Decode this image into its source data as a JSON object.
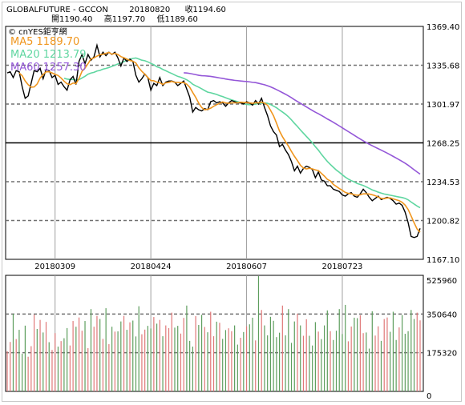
{
  "header": {
    "symbol": "GLOBALFUTURE - GCCON",
    "date": "20180820",
    "close_label": "收1194.60",
    "open_label": "開1190.40",
    "high_label": "高1197.70",
    "low_label": "低1189.60"
  },
  "watermark": "© cnYES鉅亨網",
  "legend": [
    {
      "label": "MA5 1189.70",
      "color": "#f0961e"
    },
    {
      "label": "MA20 1213.79",
      "color": "#5fd6a0"
    },
    {
      "label": "MA60 1257.30",
      "color": "#9457d8"
    }
  ],
  "colors": {
    "price": "#000000",
    "up_volume": "#e07878",
    "down_volume": "#5e9e5e",
    "grid_dashed": "#707070",
    "grid_vertical": "#a0a0a0"
  },
  "chart_data": [
    {
      "type": "line",
      "title": "",
      "y_ticks": [
        "1369.40",
        "1335.68",
        "1301.97",
        "1268.25",
        "1234.53",
        "1200.82",
        "1167.10"
      ],
      "x_ticks": [
        "20180309",
        "20180424",
        "20180607",
        "20180723"
      ],
      "ylim": [
        1167.1,
        1369.4
      ],
      "reference_line": 1268.25,
      "dashed_gridlines": [
        1335.68,
        1301.97,
        1234.53,
        1200.82
      ],
      "x_tick_index": [
        16,
        48,
        80,
        112
      ],
      "series": [
        {
          "name": "MA5 1189.70",
          "role": "ma5"
        },
        {
          "name": "MA20 1213.79",
          "role": "ma20"
        },
        {
          "name": "MA60 1257.30",
          "role": "ma60"
        }
      ],
      "close": [
        1329,
        1330,
        1325,
        1331,
        1330,
        1317,
        1307,
        1309,
        1320,
        1331,
        1330,
        1333,
        1324,
        1332,
        1331,
        1325,
        1327,
        1319,
        1321,
        1317,
        1314,
        1323,
        1326,
        1319,
        1339,
        1345,
        1337,
        1345,
        1340,
        1343,
        1353,
        1343,
        1347,
        1344,
        1347,
        1345,
        1347,
        1342,
        1335,
        1342,
        1339,
        1341,
        1339,
        1327,
        1321,
        1324,
        1328,
        1325,
        1314,
        1320,
        1318,
        1325,
        1318,
        1321,
        1322,
        1322,
        1321,
        1318,
        1320,
        1322,
        1315,
        1308,
        1295,
        1299,
        1297,
        1296,
        1298,
        1297,
        1304,
        1305,
        1303,
        1304,
        1303,
        1300,
        1303,
        1305,
        1304,
        1303,
        1303,
        1302,
        1304,
        1303,
        1301,
        1305,
        1302,
        1307,
        1299,
        1292,
        1283,
        1278,
        1275,
        1265,
        1267,
        1262,
        1258,
        1252,
        1244,
        1248,
        1242,
        1246,
        1248,
        1247,
        1245,
        1238,
        1243,
        1236,
        1235,
        1231,
        1231,
        1228,
        1227,
        1226,
        1223,
        1222,
        1224,
        1225,
        1222,
        1221,
        1224,
        1228,
        1225,
        1221,
        1218,
        1220,
        1222,
        1219,
        1220,
        1221,
        1220,
        1218,
        1215,
        1216,
        1214,
        1208,
        1199,
        1187,
        1186,
        1187,
        1194
      ]
    },
    {
      "type": "bar",
      "title": "",
      "y_ticks": [
        "525960",
        "350640",
        "175320",
        "0"
      ],
      "ylim": [
        0,
        525960
      ],
      "values": [
        182000,
        224000,
        352000,
        237000,
        279000,
        171000,
        298000,
        157000,
        205000,
        348000,
        283000,
        324000,
        267000,
        315000,
        223000,
        188000,
        264000,
        203000,
        228000,
        241000,
        287000,
        208000,
        319000,
        293000,
        335000,
        275000,
        319000,
        196000,
        373000,
        293000,
        342000,
        328000,
        238000,
        377000,
        214000,
        293000,
        271000,
        272000,
        317000,
        342000,
        279000,
        313000,
        321000,
        249000,
        386000,
        259000,
        280000,
        297000,
        285000,
        337000,
        307000,
        324000,
        250000,
        299000,
        287000,
        357000,
        289000,
        297000,
        262000,
        333000,
        389000,
        229000,
        203000,
        341000,
        301000,
        347000,
        292000,
        268000,
        361000,
        250000,
        316000,
        311000,
        238000,
        278000,
        286000,
        273000,
        299000,
        212000,
        243000,
        269000,
        295000,
        304000,
        334000,
        231000,
        530000,
        369000,
        299000,
        254000,
        338000,
        320000,
        246000,
        266000,
        389000,
        254000,
        373000,
        220000,
        317000,
        352000,
        299000,
        252000,
        327000,
        252000,
        208000,
        314000,
        271000,
        237000,
        299000,
        367000,
        273000,
        233000,
        275000,
        373000,
        260000,
        392000,
        227000,
        294000,
        334000,
        332000,
        345000,
        264000,
        267000,
        194000,
        363000,
        253000,
        295000,
        229000,
        328000,
        335000,
        270000,
        361000,
        233000,
        290000,
        346000,
        261000,
        273000,
        369000,
        328000,
        357000,
        322000
      ],
      "direction": [
        1,
        1,
        -1,
        1,
        -1,
        -1,
        -1,
        1,
        1,
        1,
        -1,
        1,
        -1,
        1,
        -1,
        1,
        1,
        -1,
        1,
        -1,
        -1,
        1,
        1,
        -1,
        1,
        1,
        -1,
        1,
        -1,
        1,
        1,
        -1,
        1,
        -1,
        1,
        -1,
        1,
        -1,
        -1,
        1,
        -1,
        1,
        -1,
        -1,
        -1,
        1,
        1,
        -1,
        -1,
        1,
        -1,
        1,
        -1,
        1,
        1,
        1,
        -1,
        -1,
        1,
        1,
        -1,
        -1,
        -1,
        1,
        -1,
        -1,
        1,
        -1,
        1,
        1,
        -1,
        1,
        -1,
        -1,
        1,
        1,
        -1,
        -1,
        1,
        -1,
        1,
        -1,
        -1,
        1,
        -1,
        1,
        -1,
        -1,
        -1,
        -1,
        -1,
        -1,
        1,
        -1,
        -1,
        -1,
        -1,
        1,
        -1,
        1,
        1,
        -1,
        -1,
        -1,
        1,
        -1,
        -1,
        -1,
        1,
        -1,
        -1,
        -1,
        -1,
        -1,
        1,
        1,
        -1,
        -1,
        1,
        1,
        -1,
        -1,
        -1,
        1,
        1,
        -1,
        1,
        1,
        -1,
        -1,
        -1,
        1,
        -1,
        -1,
        -1,
        -1,
        -1,
        1,
        1
      ]
    }
  ]
}
